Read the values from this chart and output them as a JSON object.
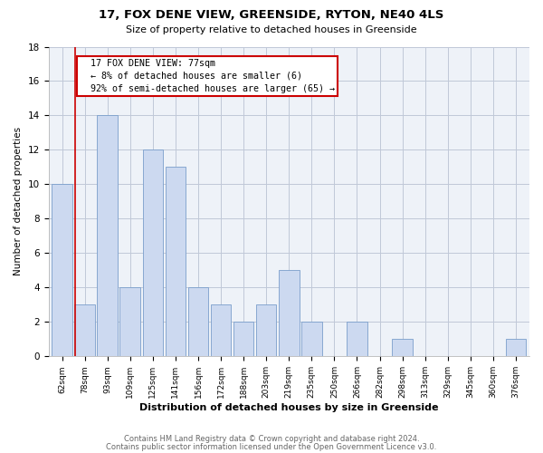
{
  "title": "17, FOX DENE VIEW, GREENSIDE, RYTON, NE40 4LS",
  "subtitle": "Size of property relative to detached houses in Greenside",
  "xlabel": "Distribution of detached houses by size in Greenside",
  "ylabel": "Number of detached properties",
  "bar_color": "#ccd9f0",
  "bar_edge_color": "#7a9ecb",
  "grid_color": "#c0c8d8",
  "background_color": "#eef2f8",
  "categories": [
    "62sqm",
    "78sqm",
    "93sqm",
    "109sqm",
    "125sqm",
    "141sqm",
    "156sqm",
    "172sqm",
    "188sqm",
    "203sqm",
    "219sqm",
    "235sqm",
    "250sqm",
    "266sqm",
    "282sqm",
    "298sqm",
    "313sqm",
    "329sqm",
    "345sqm",
    "360sqm",
    "376sqm"
  ],
  "values": [
    10,
    3,
    14,
    4,
    12,
    11,
    4,
    3,
    2,
    3,
    5,
    2,
    0,
    2,
    0,
    1,
    0,
    0,
    0,
    0,
    1
  ],
  "ylim": [
    0,
    18
  ],
  "yticks": [
    0,
    2,
    4,
    6,
    8,
    10,
    12,
    14,
    16,
    18
  ],
  "property_line_x": 0.575,
  "annotation_text": "  17 FOX DENE VIEW: 77sqm\n  ← 8% of detached houses are smaller (6)\n  92% of semi-detached houses are larger (65) →",
  "annotation_box_color": "#ffffff",
  "annotation_box_edge_color": "#cc0000",
  "vline_color": "#cc0000",
  "footer_line1": "Contains HM Land Registry data © Crown copyright and database right 2024.",
  "footer_line2": "Contains public sector information licensed under the Open Government Licence v3.0."
}
